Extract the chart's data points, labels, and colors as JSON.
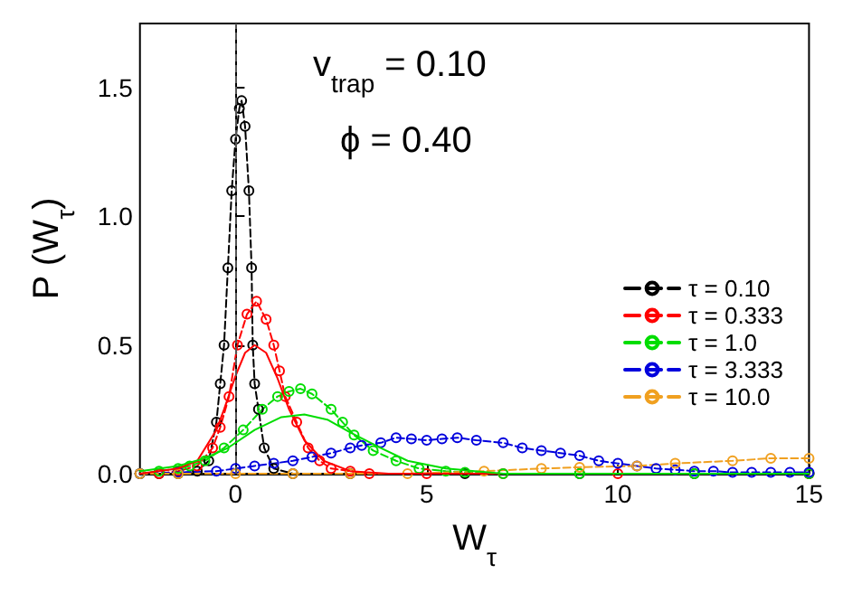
{
  "chart_data": {
    "type": "line",
    "xlabel": "W$_{τ}$",
    "ylabel": "P (W$_{τ}$)",
    "annotations": [
      "v$_{trap}$ = 0.10",
      "ϕ = 0.40"
    ],
    "xlim": [
      -2.5,
      15
    ],
    "ylim": [
      0,
      1.75
    ],
    "xticks": [
      0,
      5,
      10,
      15
    ],
    "yticks": [
      {
        "value": 0,
        "label": "0.0"
      },
      0.5,
      {
        "value": 1,
        "label": "1.0"
      },
      1.5
    ],
    "grid": false,
    "legend": "right",
    "marker": "circle",
    "line_style": "dashed",
    "ref_lines": [
      {
        "axis": "x",
        "value": 0,
        "color": "#555555",
        "line_style": "dashed"
      }
    ],
    "series": [
      {
        "name": "τ = 0.10",
        "color": "#000000",
        "x": [
          -2.5,
          -2,
          -1.5,
          -1,
          -0.7,
          -0.5,
          -0.4,
          -0.3,
          -0.2,
          -0.1,
          0,
          0.1,
          0.16,
          0.25,
          0.35,
          0.42,
          0.45,
          0.5,
          0.6,
          0.75,
          1,
          1.5,
          3,
          6,
          9,
          12,
          15
        ],
        "values": [
          0,
          0,
          0,
          0.01,
          0.05,
          0.2,
          0.35,
          0.5,
          0.8,
          1.1,
          1.3,
          1.42,
          1.45,
          1.35,
          1.1,
          0.8,
          0.5,
          0.35,
          0.25,
          0.1,
          0.02,
          0,
          0,
          0,
          0,
          0,
          0
        ]
      },
      {
        "name": "τ = 0.333",
        "color": "#ff0000",
        "x": [
          -2.5,
          -2,
          -1.5,
          -1,
          -0.6,
          -0.4,
          -0.17,
          0.05,
          0.3,
          0.55,
          0.8,
          1,
          1.15,
          1.3,
          1.6,
          1.9,
          2.2,
          2.5,
          3,
          3.5,
          5,
          7,
          10,
          15
        ],
        "values": [
          0,
          0,
          0.01,
          0.03,
          0.1,
          0.18,
          0.3,
          0.5,
          0.62,
          0.67,
          0.6,
          0.5,
          0.4,
          0.3,
          0.2,
          0.1,
          0.05,
          0.02,
          0.01,
          0,
          0,
          0,
          0,
          0
        ]
      },
      {
        "name": "τ = 1.0",
        "color": "#00dd00",
        "x": [
          -2.5,
          -2,
          -1.5,
          -1.2,
          -0.8,
          -0.3,
          0.2,
          0.7,
          1.1,
          1.4,
          1.7,
          2,
          2.5,
          2.8,
          3.1,
          3.6,
          4.2,
          4.8,
          5.5,
          6,
          7,
          9,
          12,
          15
        ],
        "values": [
          0,
          0.01,
          0.02,
          0.03,
          0.05,
          0.1,
          0.17,
          0.25,
          0.3,
          0.32,
          0.33,
          0.31,
          0.25,
          0.2,
          0.15,
          0.09,
          0.05,
          0.02,
          0.01,
          0.005,
          0,
          0,
          0,
          0
        ]
      },
      {
        "name": "τ = 3.333",
        "color": "#0000dd",
        "x": [
          -2.5,
          -1.5,
          -0.5,
          0,
          0.5,
          1,
          1.5,
          2,
          2.5,
          3,
          3.3,
          3.8,
          4.2,
          4.6,
          5,
          5.4,
          5.8,
          6.3,
          7,
          7.5,
          8,
          8.5,
          9,
          9.5,
          10,
          10.5,
          11,
          11.5,
          12,
          12.5,
          13,
          13.5,
          14,
          14.5,
          15
        ],
        "values": [
          0,
          0.005,
          0.01,
          0.02,
          0.03,
          0.04,
          0.05,
          0.065,
          0.08,
          0.1,
          0.11,
          0.12,
          0.14,
          0.135,
          0.13,
          0.135,
          0.14,
          0.13,
          0.12,
          0.1,
          0.09,
          0.08,
          0.07,
          0.05,
          0.04,
          0.03,
          0.02,
          0.015,
          0.01,
          0.01,
          0.005,
          0.005,
          0.005,
          0.005,
          0.005
        ]
      },
      {
        "name": "τ = 10.0",
        "color": "#f0a020",
        "x": [
          -2.5,
          -1.5,
          0,
          1.5,
          3,
          4.5,
          6.5,
          8,
          9,
          10.5,
          11.5,
          13,
          14,
          15
        ],
        "values": [
          0,
          0,
          0,
          0,
          0,
          0,
          0.01,
          0.02,
          0.025,
          0.03,
          0.04,
          0.05,
          0.06,
          0.06
        ]
      },
      {
        "type": "line",
        "color": "#ff0000",
        "marker": "none",
        "line_style": "solid",
        "x": [
          -2.5,
          -1.5,
          -1,
          -0.5,
          -0.3,
          0,
          0.25,
          0.5,
          0.8,
          1.1,
          1.4,
          1.8,
          2.3,
          3,
          4,
          6,
          15
        ],
        "values": [
          0,
          0.02,
          0.05,
          0.17,
          0.25,
          0.38,
          0.47,
          0.5,
          0.47,
          0.37,
          0.25,
          0.13,
          0.05,
          0.01,
          0,
          0,
          0
        ]
      },
      {
        "type": "line",
        "color": "#00dd00",
        "marker": "none",
        "line_style": "solid",
        "x": [
          -2.5,
          -1.5,
          -0.8,
          -0.2,
          0.5,
          1.2,
          1.8,
          2.4,
          3,
          3.8,
          4.5,
          5.5,
          7,
          15
        ],
        "values": [
          0.01,
          0.03,
          0.06,
          0.1,
          0.17,
          0.22,
          0.23,
          0.21,
          0.16,
          0.1,
          0.05,
          0.02,
          0,
          0
        ]
      }
    ]
  }
}
